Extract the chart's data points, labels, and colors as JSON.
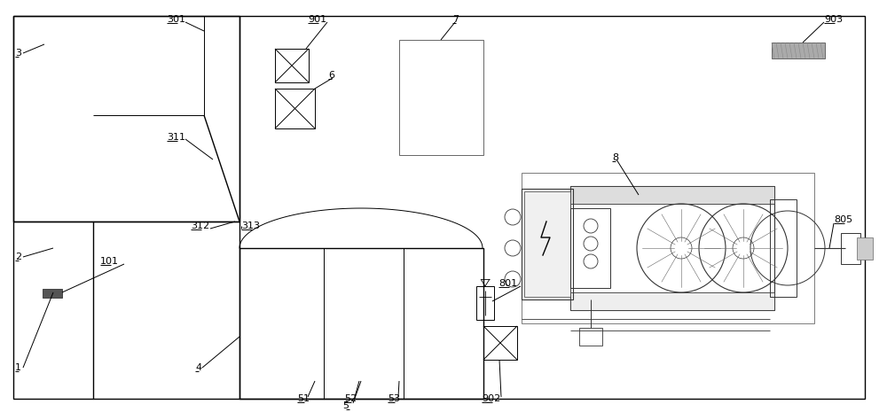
{
  "bg_color": "#ffffff",
  "lc": "#000000",
  "gc": "#666666",
  "dgc": "#333333",
  "figsize": [
    10.0,
    4.65
  ],
  "dpi": 100
}
